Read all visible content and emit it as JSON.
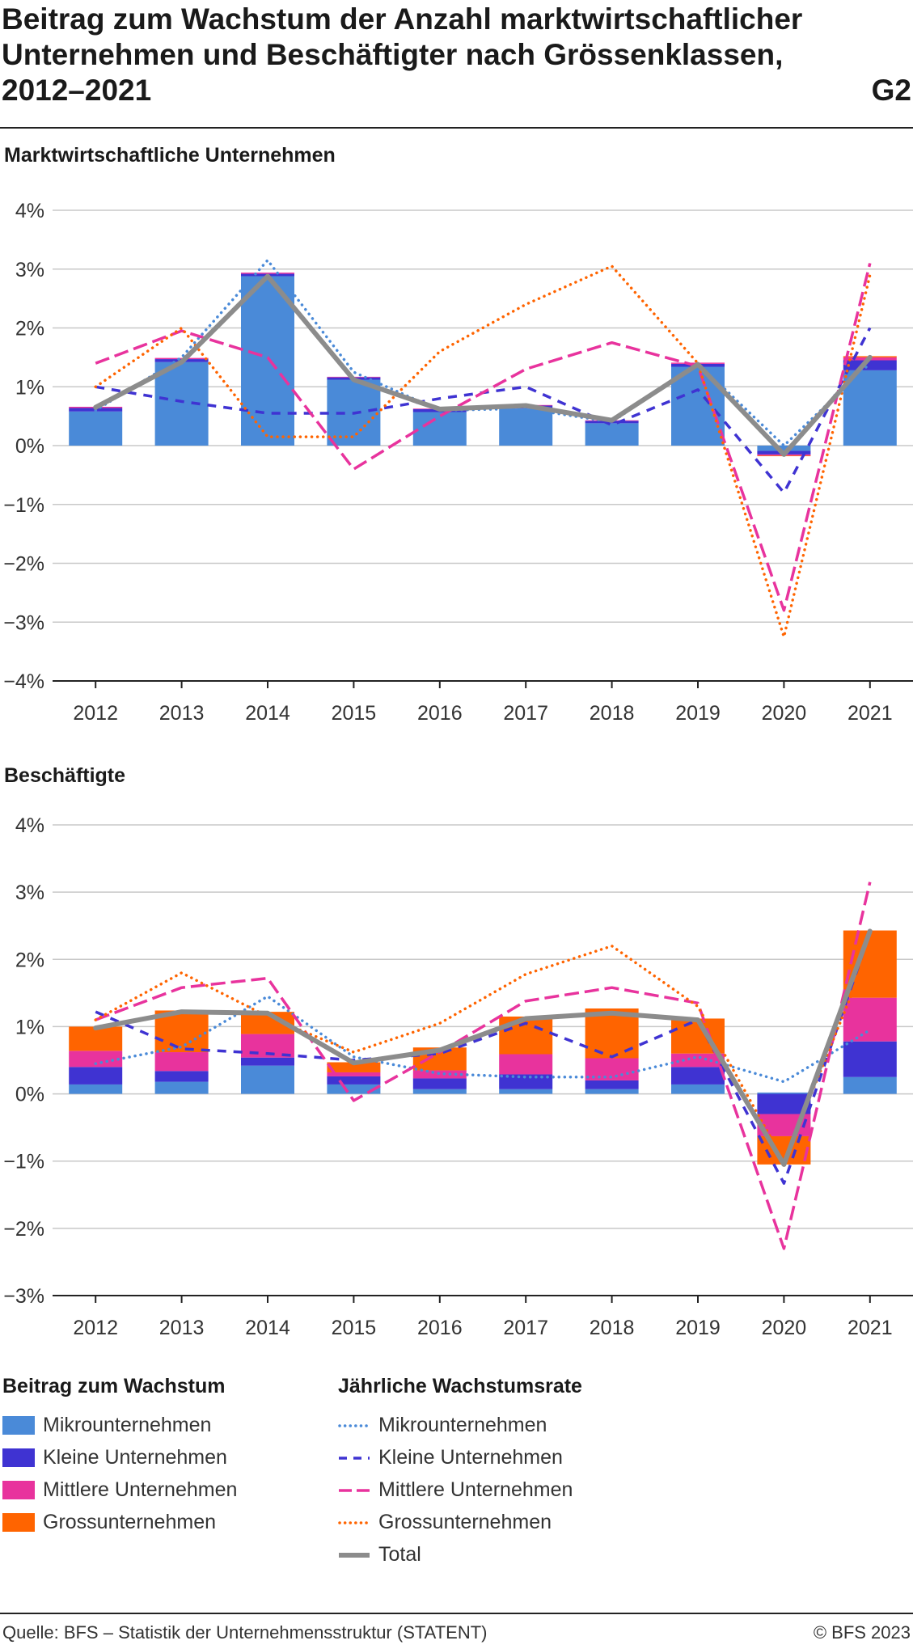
{
  "header": {
    "title_lines": [
      "Beitrag zum Wachstum der Anzahl marktwirtschaftlicher",
      "Unternehmen und Beschäftigter nach Grössenklassen,",
      "2012–2021"
    ],
    "code": "G2"
  },
  "colors": {
    "mikro": "#4a8ad8",
    "klein": "#3f33d2",
    "mittel": "#e8339d",
    "gross": "#ff6400",
    "total": "#8c8c8c",
    "grid": "#c8c8c8"
  },
  "chart_data": [
    {
      "type": "bar",
      "title": "Marktwirtschaftliche Unternehmen",
      "categories": [
        "2012",
        "2013",
        "2014",
        "2015",
        "2016",
        "2017",
        "2018",
        "2019",
        "2020",
        "2021"
      ],
      "ylim": [
        -4,
        4
      ],
      "yticks": [
        4,
        3,
        2,
        1,
        0,
        -1,
        -2,
        -3,
        -4
      ],
      "ytick_labels": [
        "4%",
        "3%",
        "2%",
        "1%",
        "0%",
        "−1%",
        "−2%",
        "−3%",
        "−4%"
      ],
      "grid": true,
      "stacked": true,
      "bar_series": [
        {
          "name": "Mikrounternehmen",
          "values": [
            0.58,
            1.42,
            2.88,
            1.12,
            0.57,
            0.63,
            0.38,
            1.34,
            -0.09,
            1.28
          ]
        },
        {
          "name": "Kleine Unternehmen",
          "values": [
            0.06,
            0.05,
            0.04,
            0.04,
            0.05,
            0.05,
            0.04,
            0.05,
            -0.06,
            0.17
          ]
        },
        {
          "name": "Mittlere Unternehmen",
          "values": [
            0.02,
            0.02,
            0.02,
            0.01,
            0.01,
            0.01,
            0.01,
            0.02,
            -0.02,
            0.05
          ]
        },
        {
          "name": "Grossunternehmen",
          "values": [
            0.0,
            0.0,
            0.0,
            0.0,
            0.0,
            0.0,
            0.0,
            0.0,
            -0.01,
            0.02
          ]
        }
      ],
      "line_series": [
        {
          "name": "Mikrounternehmen",
          "values": [
            0.6,
            1.5,
            3.15,
            1.25,
            0.6,
            0.63,
            0.4,
            1.4,
            0.0,
            1.4
          ]
        },
        {
          "name": "Kleine Unternehmen",
          "values": [
            1.0,
            0.75,
            0.55,
            0.55,
            0.8,
            1.0,
            0.35,
            0.95,
            -0.8,
            2.0
          ]
        },
        {
          "name": "Mittlere Unternehmen",
          "values": [
            1.4,
            1.95,
            1.5,
            -0.4,
            0.5,
            1.3,
            1.75,
            1.35,
            -2.8,
            3.1
          ]
        },
        {
          "name": "Grossunternehmen",
          "values": [
            1.0,
            2.0,
            0.15,
            0.15,
            1.6,
            2.4,
            3.05,
            1.4,
            -3.25,
            2.9
          ]
        },
        {
          "name": "Total",
          "values": [
            0.65,
            1.42,
            2.88,
            1.12,
            0.62,
            0.68,
            0.43,
            1.38,
            -0.15,
            1.5
          ]
        }
      ]
    },
    {
      "type": "bar",
      "title": "Beschäftigte",
      "categories": [
        "2012",
        "2013",
        "2014",
        "2015",
        "2016",
        "2017",
        "2018",
        "2019",
        "2020",
        "2021"
      ],
      "ylim": [
        -3,
        4
      ],
      "yticks": [
        4,
        3,
        2,
        1,
        0,
        -1,
        -2,
        -3
      ],
      "ytick_labels": [
        "4%",
        "3%",
        "2%",
        "1%",
        "0%",
        "−1%",
        "−2%",
        "−3%"
      ],
      "grid": true,
      "stacked": true,
      "bar_series": [
        {
          "name": "Mikrounternehmen",
          "values": [
            0.14,
            0.18,
            0.42,
            0.14,
            0.07,
            0.07,
            0.07,
            0.14,
            0.02,
            0.25
          ]
        },
        {
          "name": "Kleine Unternehmen",
          "values": [
            0.26,
            0.16,
            0.12,
            0.12,
            0.16,
            0.22,
            0.13,
            0.26,
            -0.3,
            0.53
          ]
        },
        {
          "name": "Mittlere Unternehmen",
          "values": [
            0.24,
            0.28,
            0.35,
            0.06,
            0.12,
            0.3,
            0.33,
            0.2,
            -0.33,
            0.65
          ]
        },
        {
          "name": "Grossunternehmen",
          "values": [
            0.36,
            0.62,
            0.33,
            0.15,
            0.34,
            0.56,
            0.74,
            0.52,
            -0.42,
            1.0
          ]
        }
      ],
      "line_series": [
        {
          "name": "Mikrounternehmen",
          "values": [
            0.45,
            0.7,
            1.45,
            0.55,
            0.3,
            0.25,
            0.25,
            0.55,
            0.18,
            0.95
          ]
        },
        {
          "name": "Kleine Unternehmen",
          "values": [
            1.22,
            0.67,
            0.6,
            0.5,
            0.6,
            1.05,
            0.55,
            1.1,
            -1.33,
            2.4
          ]
        },
        {
          "name": "Mittlere Unternehmen",
          "values": [
            1.1,
            1.58,
            1.72,
            -0.1,
            0.62,
            1.38,
            1.58,
            1.35,
            -2.3,
            3.15
          ]
        },
        {
          "name": "Grossunternehmen",
          "values": [
            1.1,
            1.8,
            1.15,
            0.62,
            1.05,
            1.78,
            2.2,
            1.3,
            -1.0,
            2.15
          ]
        },
        {
          "name": "Total",
          "values": [
            0.98,
            1.22,
            1.2,
            0.46,
            0.65,
            1.12,
            1.2,
            1.1,
            -1.05,
            2.42
          ]
        }
      ]
    }
  ],
  "legend": {
    "bars_title": "Beitrag zum Wachstum",
    "lines_title": "Jährliche Wachstumsrate",
    "items": [
      "Mikrounternehmen",
      "Kleine Unternehmen",
      "Mittlere Unternehmen",
      "Grossunternehmen"
    ],
    "total_label": "Total"
  },
  "footer": {
    "source": "Quelle: BFS – Statistik der Unternehmensstruktur (STATENT)",
    "copyright": "© BFS 2023"
  }
}
